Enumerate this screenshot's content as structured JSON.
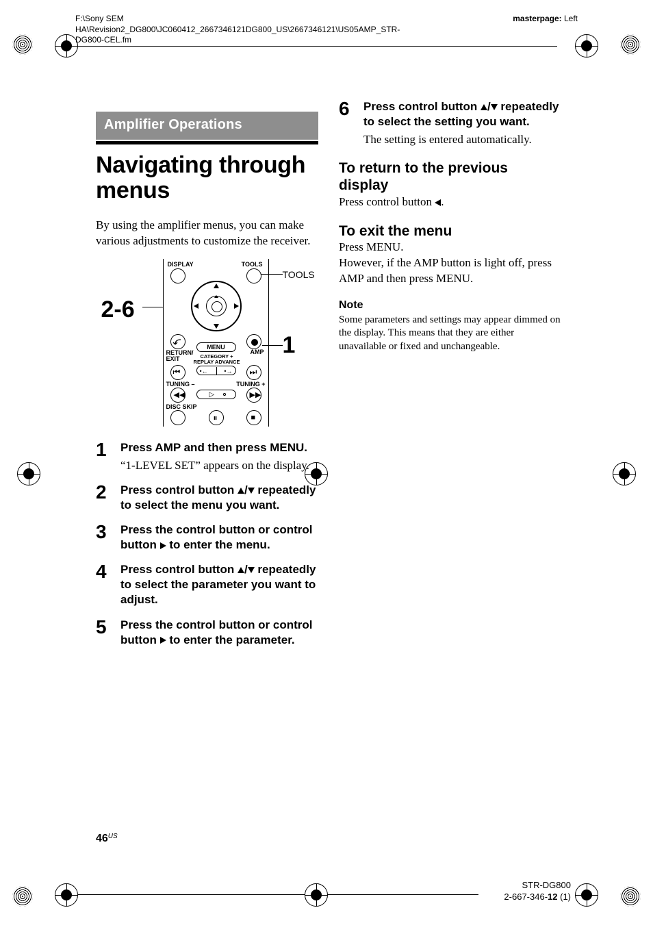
{
  "header": {
    "path": "F:\\Sony SEM HA\\Revision2_DG800\\JC060412_2667346121DG800_US\\2667346121\\US05AMP_STR-DG800-CEL.fm",
    "masterpage_label": "masterpage:",
    "masterpage_value": "Left"
  },
  "section_bar": "Amplifier Operations",
  "title": "Navigating through menus",
  "intro": "By using the amplifier menus, you can make various adjustments to customize the receiver.",
  "remote": {
    "callout_left": "2-6",
    "callout_right_top": "TOOLS",
    "callout_right_mid": "1",
    "labels": {
      "display": "DISPLAY",
      "tools": "TOOLS",
      "return": "RETURN/\nEXIT",
      "menu": "MENU",
      "amp": "AMP",
      "category": "CATEGORY +\nREPLAY ADVANCE",
      "tuning_minus": "TUNING –",
      "tuning_plus": "TUNING +",
      "disc_skip": "DISC SKIP"
    }
  },
  "left_steps": [
    {
      "n": "1",
      "head": "Press AMP and then press MENU.",
      "sub": "“1-LEVEL SET” appears on the display."
    },
    {
      "n": "2",
      "head_pre": "Press control button ",
      "head_post": " repeatedly to select the menu you want.",
      "arrows": "updown"
    },
    {
      "n": "3",
      "head_pre": "Press the control button or control button ",
      "head_post": " to enter the menu.",
      "arrows": "right"
    },
    {
      "n": "4",
      "head_pre": "Press control button ",
      "head_post": " repeatedly to select the parameter you want to adjust.",
      "arrows": "updown"
    },
    {
      "n": "5",
      "head_pre": "Press the control button or control button ",
      "head_post": " to enter the parameter.",
      "arrows": "right"
    }
  ],
  "right_step": {
    "n": "6",
    "head_pre": "Press control button ",
    "head_post": " repeatedly to select the setting you want.",
    "arrows": "updown",
    "sub": "The setting is entered automatically."
  },
  "return_section": {
    "heading": "To return to the previous display",
    "body_pre": "Press control button ",
    "body_post": "."
  },
  "exit_section": {
    "heading": "To exit the menu",
    "body": "Press MENU.\nHowever, if the AMP button is light off, press AMP and then press MENU."
  },
  "note": {
    "label": "Note",
    "body": "Some parameters and settings may appear dimmed on the display. This means that they are either unavailable or fixed and unchangeable."
  },
  "page_number": {
    "num": "46",
    "suffix": "US"
  },
  "footer": {
    "model": "STR-DG800",
    "partno": "2-667-346-12 (1)",
    "partno_bold": "12"
  }
}
